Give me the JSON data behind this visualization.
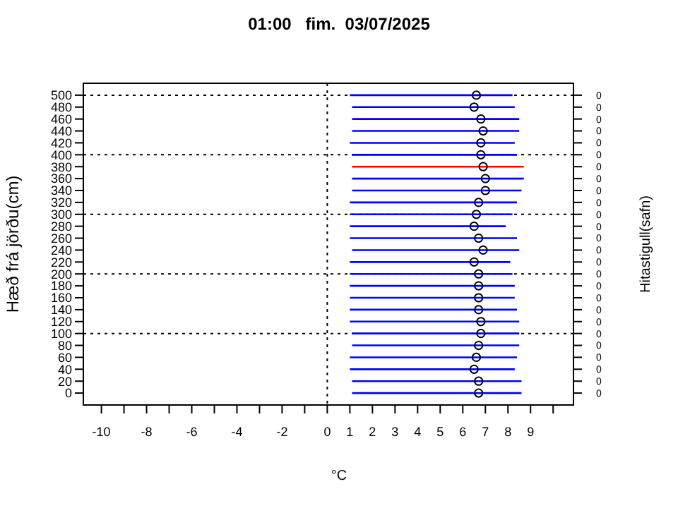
{
  "chart_data": {
    "type": "scatter",
    "title": "01:00   fim.  03/07/2025",
    "xlabel": "°C",
    "ylabel": "Hæð frá jörðu(cm)",
    "y2label": "Hitastigull(safn)",
    "xlim": [
      -10.8,
      10.9
    ],
    "xticks": [
      -10,
      {
        "value": -9,
        "label": null
      },
      -8,
      {
        "value": -7,
        "label": null
      },
      -6,
      {
        "value": -5,
        "label": null
      },
      -4,
      {
        "value": -3,
        "label": null
      },
      -2,
      {
        "value": -1,
        "label": null
      },
      0,
      1,
      2,
      3,
      4,
      5,
      6,
      7,
      8,
      9,
      {
        "value": 10,
        "label": null
      }
    ],
    "ylim": [
      -20,
      520
    ],
    "yticks": [
      0,
      20,
      40,
      60,
      80,
      100,
      120,
      140,
      160,
      180,
      200,
      220,
      240,
      260,
      280,
      300,
      320,
      340,
      360,
      380,
      400,
      420,
      440,
      460,
      480,
      500
    ],
    "annotations": [
      "0",
      "0",
      "0",
      "0",
      "0",
      "0",
      "0",
      "0",
      "0",
      "0",
      "0",
      "0",
      "0",
      "0",
      "0",
      "0",
      "0",
      "0",
      "0",
      "0",
      "0",
      "0",
      "0",
      "0",
      "0",
      "0"
    ],
    "ref_lines": [
      {
        "axis": "y",
        "value": 100,
        "color": "#000000",
        "line_style": "dotted"
      },
      {
        "axis": "y",
        "value": 200,
        "color": "#000000",
        "line_style": "dotted"
      },
      {
        "axis": "y",
        "value": 300,
        "color": "#000000",
        "line_style": "dotted"
      },
      {
        "axis": "y",
        "value": 400,
        "color": "#000000",
        "line_style": "dotted"
      },
      {
        "axis": "y",
        "value": 500,
        "color": "#000000",
        "line_style": "dotted"
      },
      {
        "axis": "x",
        "value": 0,
        "color": "#000000",
        "line_style": "dotted"
      }
    ],
    "series": [
      {
        "type": "line",
        "color": "#0000ff",
        "x": [
          1.1,
          8.6
        ],
        "values": [
          0,
          0
        ]
      },
      {
        "type": "line",
        "color": "#0000ff",
        "x": [
          1.1,
          8.6
        ],
        "values": [
          20,
          20
        ]
      },
      {
        "type": "line",
        "color": "#0000ff",
        "x": [
          1.0,
          8.3
        ],
        "values": [
          40,
          40
        ]
      },
      {
        "type": "line",
        "color": "#0000ff",
        "x": [
          1.0,
          8.4
        ],
        "values": [
          60,
          60
        ]
      },
      {
        "type": "line",
        "color": "#0000ff",
        "x": [
          1.1,
          8.5
        ],
        "values": [
          80,
          80
        ]
      },
      {
        "type": "line",
        "color": "#0000ff",
        "x": [
          1.1,
          8.5
        ],
        "values": [
          100,
          100
        ]
      },
      {
        "type": "line",
        "color": "#0000ff",
        "x": [
          1.0,
          8.5
        ],
        "values": [
          120,
          120
        ]
      },
      {
        "type": "line",
        "color": "#0000ff",
        "x": [
          1.0,
          8.4
        ],
        "values": [
          140,
          140
        ]
      },
      {
        "type": "line",
        "color": "#0000ff",
        "x": [
          1.0,
          8.3
        ],
        "values": [
          160,
          160
        ]
      },
      {
        "type": "line",
        "color": "#0000ff",
        "x": [
          1.0,
          8.3
        ],
        "values": [
          180,
          180
        ]
      },
      {
        "type": "line",
        "color": "#0000ff",
        "x": [
          1.0,
          8.2
        ],
        "values": [
          200,
          200
        ]
      },
      {
        "type": "line",
        "color": "#0000ff",
        "x": [
          1.0,
          8.1
        ],
        "values": [
          220,
          220
        ]
      },
      {
        "type": "line",
        "color": "#0000ff",
        "x": [
          1.1,
          8.5
        ],
        "values": [
          240,
          240
        ]
      },
      {
        "type": "line",
        "color": "#0000ff",
        "x": [
          1.0,
          8.4
        ],
        "values": [
          260,
          260
        ]
      },
      {
        "type": "line",
        "color": "#0000ff",
        "x": [
          1.0,
          7.9
        ],
        "values": [
          280,
          280
        ]
      },
      {
        "type": "line",
        "color": "#0000ff",
        "x": [
          1.0,
          8.2
        ],
        "values": [
          300,
          300
        ]
      },
      {
        "type": "line",
        "color": "#0000ff",
        "x": [
          1.0,
          8.4
        ],
        "values": [
          320,
          320
        ]
      },
      {
        "type": "line",
        "color": "#0000ff",
        "x": [
          1.1,
          8.6
        ],
        "values": [
          340,
          340
        ]
      },
      {
        "type": "line",
        "color": "#0000ff",
        "x": [
          1.1,
          8.7
        ],
        "values": [
          360,
          360
        ]
      },
      {
        "type": "line",
        "color": "#ff0000",
        "x": [
          1.1,
          8.7
        ],
        "values": [
          380,
          380
        ]
      },
      {
        "type": "line",
        "color": "#0000ff",
        "x": [
          1.1,
          8.4
        ],
        "values": [
          400,
          400
        ]
      },
      {
        "type": "line",
        "color": "#0000ff",
        "x": [
          1.0,
          8.3
        ],
        "values": [
          420,
          420
        ]
      },
      {
        "type": "line",
        "color": "#0000ff",
        "x": [
          1.1,
          8.5
        ],
        "values": [
          440,
          440
        ]
      },
      {
        "type": "line",
        "color": "#0000ff",
        "x": [
          1.1,
          8.5
        ],
        "values": [
          460,
          460
        ]
      },
      {
        "type": "line",
        "color": "#0000ff",
        "x": [
          1.1,
          8.3
        ],
        "values": [
          480,
          480
        ]
      },
      {
        "type": "line",
        "color": "#0000ff",
        "x": [
          1.0,
          8.2
        ],
        "values": [
          500,
          500
        ]
      },
      {
        "color": "#000000",
        "marker": "circle",
        "x": [
          6.7,
          6.7,
          6.5,
          6.6,
          6.7,
          6.8,
          6.8,
          6.7,
          6.7,
          6.7,
          6.7,
          6.5,
          6.9,
          6.7,
          6.5,
          6.6,
          6.7,
          7.0,
          7.0,
          6.9,
          6.8,
          6.8,
          6.9,
          6.8,
          6.5,
          6.6
        ],
        "values": [
          0,
          20,
          40,
          60,
          80,
          100,
          120,
          140,
          160,
          180,
          200,
          220,
          240,
          260,
          280,
          300,
          320,
          340,
          360,
          380,
          400,
          420,
          440,
          460,
          480,
          500
        ]
      }
    ]
  }
}
